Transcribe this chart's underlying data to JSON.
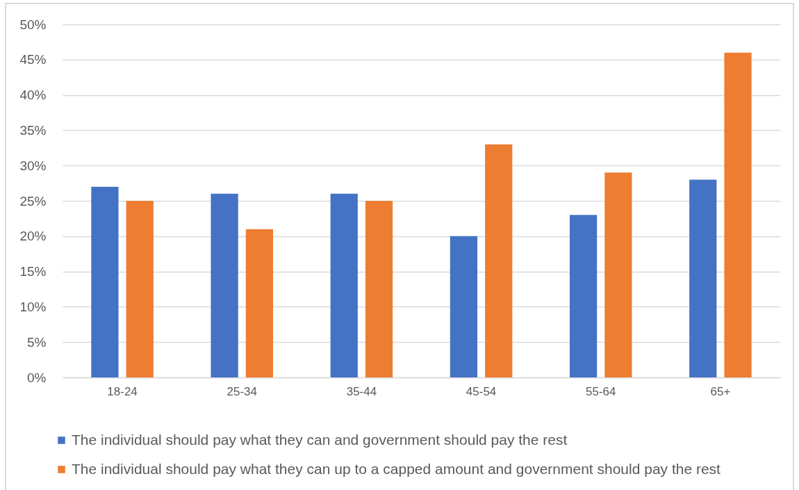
{
  "chart_data": {
    "type": "bar",
    "categories": [
      "18-24",
      "25-34",
      "35-44",
      "45-54",
      "55-64",
      "65+"
    ],
    "series": [
      {
        "name": "The individual should pay what they can and government should pay the rest",
        "color": "#4472c4",
        "values": [
          27,
          26,
          26,
          20,
          23,
          28
        ]
      },
      {
        "name": "The individual should pay what they can up to a capped amount and government should pay the rest",
        "color": "#ed7d31",
        "values": [
          25,
          21,
          25,
          33,
          29,
          46
        ]
      }
    ],
    "ylim": [
      0,
      50
    ],
    "yticks": [
      {
        "value": 0,
        "label": "0%"
      },
      {
        "value": 5,
        "label": "5%"
      },
      {
        "value": 10,
        "label": "10%"
      },
      {
        "value": 15,
        "label": "15%"
      },
      {
        "value": 20,
        "label": "20%"
      },
      {
        "value": 25,
        "label": "25%"
      },
      {
        "value": 30,
        "label": "30%"
      },
      {
        "value": 35,
        "label": "35%"
      },
      {
        "value": 40,
        "label": "40%"
      },
      {
        "value": 45,
        "label": "45%"
      },
      {
        "value": 50,
        "label": "50%"
      }
    ],
    "grid": "y",
    "legend": "bottom"
  }
}
